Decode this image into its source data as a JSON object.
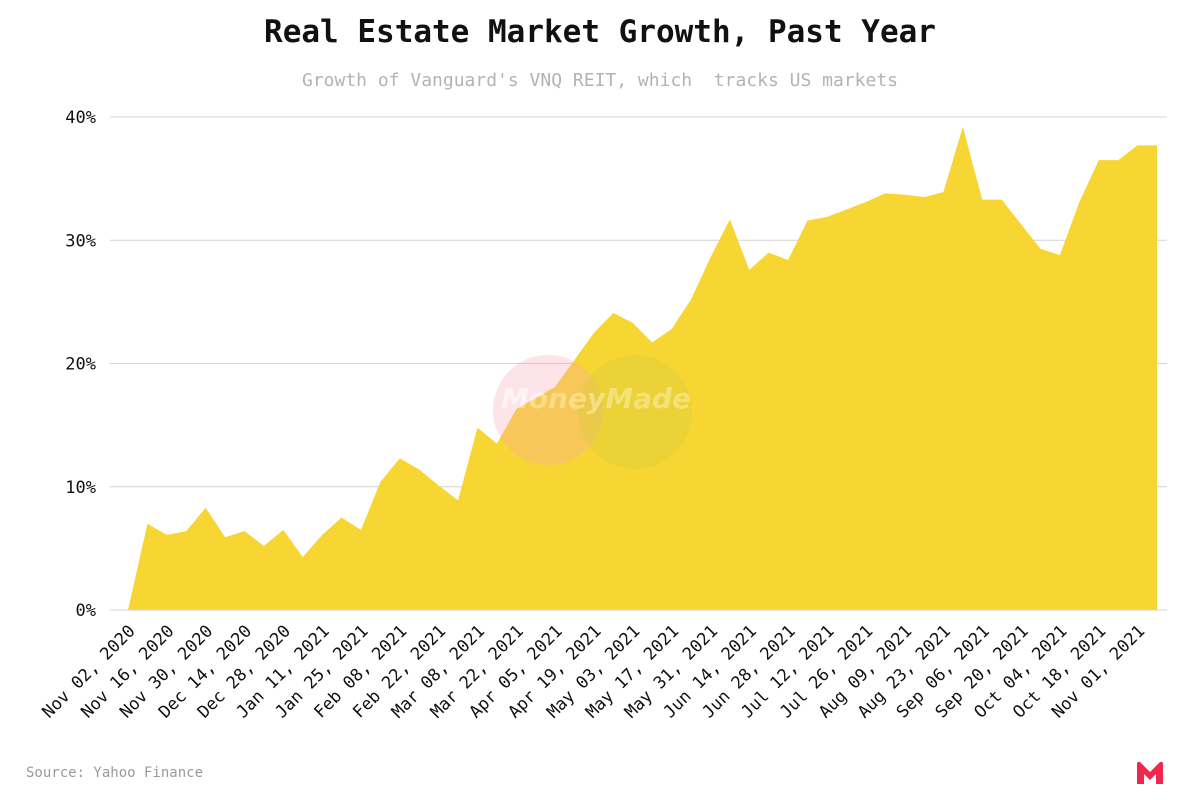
{
  "chart_data": {
    "type": "area",
    "title": "Real Estate Market Growth, Past Year",
    "subtitle": "Growth of Vanguard's VNQ REIT, which  tracks US markets",
    "xlabel": "",
    "ylabel": "",
    "ylim": [
      0,
      40
    ],
    "yticks": [
      0,
      10,
      20,
      30,
      40
    ],
    "ytick_labels": [
      "0%",
      "10%",
      "20%",
      "30%",
      "40%"
    ],
    "grid": "horizontal",
    "x_tick_labels": [
      "Nov 02, 2020",
      "Nov 16, 2020",
      "Nov 30, 2020",
      "Dec 14, 2020",
      "Dec 28, 2020",
      "Jan 11, 2021",
      "Jan 25, 2021",
      "Feb 08, 2021",
      "Feb 22, 2021",
      "Mar 08, 2021",
      "Mar 22, 2021",
      "Apr 05, 2021",
      "Apr 19, 2021",
      "May 03, 2021",
      "May 17, 2021",
      "May 31, 2021",
      "Jun 14, 2021",
      "Jun 28, 2021",
      "Jul 12, 2021",
      "Jul 26, 2021",
      "Aug 09, 2021",
      "Aug 23, 2021",
      "Sep 06, 2021",
      "Sep 20, 2021",
      "Oct 04, 2021",
      "Oct 18, 2021",
      "Nov 01, 2021"
    ],
    "series": [
      {
        "color": "#f7d532",
        "values": [
          0,
          7.0,
          6.1,
          6.4,
          8.3,
          5.9,
          6.4,
          5.2,
          6.5,
          4.3,
          6.1,
          7.5,
          6.5,
          10.4,
          12.3,
          11.4,
          10.1,
          8.9,
          14.8,
          13.5,
          16.3,
          17.2,
          18.1,
          20.3,
          22.5,
          24.1,
          23.3,
          21.7,
          22.8,
          25.2,
          28.6,
          31.7,
          27.6,
          29.0,
          28.4,
          31.6,
          31.9,
          32.5,
          33.1,
          33.8,
          33.7,
          33.5,
          33.9,
          39.2,
          33.3,
          33.3,
          31.3,
          29.3,
          28.8,
          33.1,
          36.5,
          36.5,
          37.7,
          37.7
        ]
      }
    ]
  },
  "source": "Source: Yahoo Finance",
  "watermark": "MoneyMade"
}
